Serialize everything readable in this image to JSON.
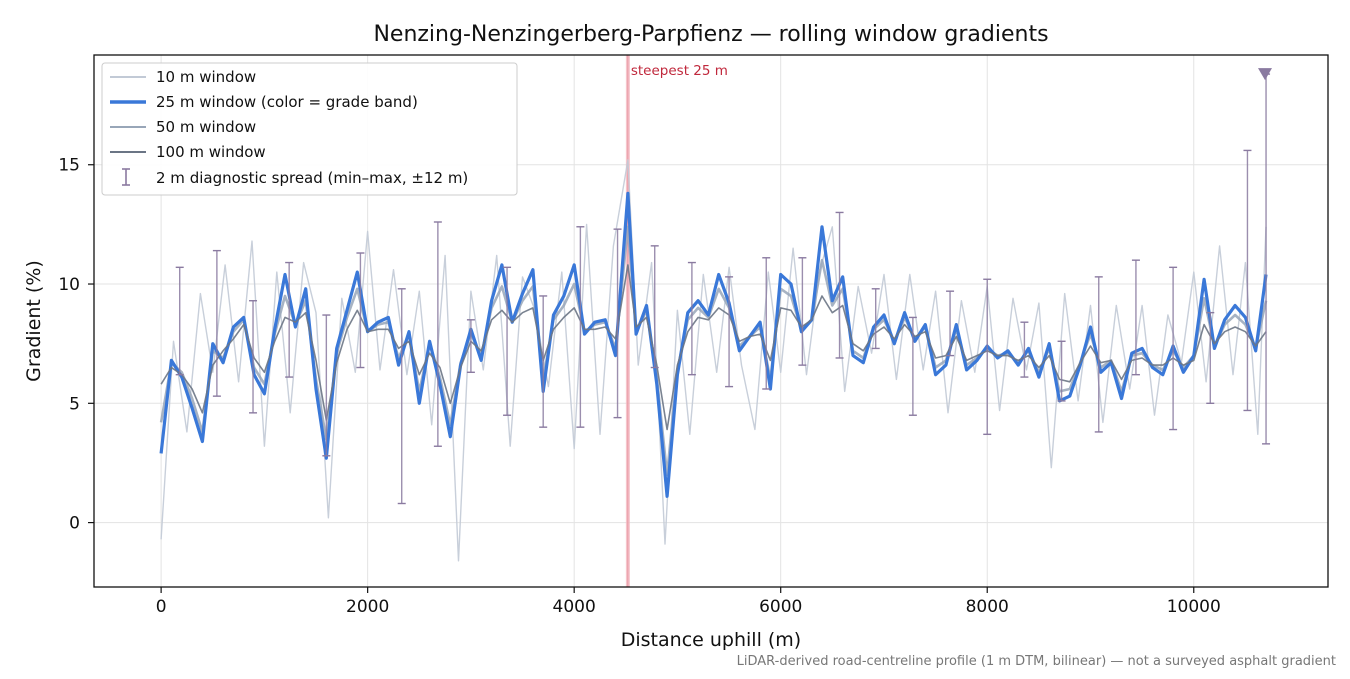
{
  "chart_data": {
    "type": "line",
    "title": "Nenzing-Nenzingerberg-Parpfienz — rolling window gradients",
    "xlabel": "Distance uphill (m)",
    "ylabel": "Gradient (%)",
    "xlim": [
      -650,
      11300
    ],
    "ylim": [
      -2.7,
      19.6
    ],
    "x_ticks": [
      0,
      2000,
      4000,
      6000,
      8000,
      10000
    ],
    "y_ticks": [
      0,
      5,
      10,
      15
    ],
    "grid": true,
    "legend_position": "upper-left",
    "footnote": "LiDAR-derived road-centreline profile (1 m DTM, bilinear) — not a surveyed asphalt gradient",
    "annotation": {
      "text": "steepest 25 m",
      "x": 4520,
      "color": "#c0283c"
    },
    "max_marker": {
      "x": 10690,
      "y": 18.8,
      "color": "#8a7aa0"
    },
    "series": [
      {
        "name": "10 m window",
        "color": "#c2cad6",
        "style": "thin line",
        "x": [
          0,
          120,
          250,
          380,
          500,
          620,
          750,
          880,
          1000,
          1120,
          1250,
          1380,
          1500,
          1620,
          1750,
          1880,
          2000,
          2120,
          2250,
          2380,
          2500,
          2620,
          2750,
          2880,
          3000,
          3120,
          3250,
          3380,
          3500,
          3620,
          3750,
          3880,
          4000,
          4120,
          4250,
          4380,
          4520,
          4620,
          4750,
          4880,
          5000,
          5120,
          5250,
          5380,
          5500,
          5620,
          5750,
          5880,
          6000,
          6120,
          6250,
          6380,
          6500,
          6620,
          6750,
          6880,
          7000,
          7120,
          7250,
          7380,
          7500,
          7620,
          7750,
          7880,
          8000,
          8120,
          8250,
          8380,
          8500,
          8620,
          8750,
          8880,
          9000,
          9120,
          9250,
          9380,
          9500,
          9620,
          9750,
          9880,
          10000,
          10120,
          10250,
          10380,
          10500,
          10620,
          10700
        ],
        "y": [
          -0.7,
          7.6,
          3.8,
          9.6,
          6.3,
          10.8,
          5.9,
          11.8,
          3.2,
          10.5,
          4.6,
          10.9,
          8.8,
          0.2,
          9.4,
          6.3,
          12.2,
          6.4,
          10.6,
          6.2,
          9.7,
          4.1,
          11.2,
          -1.6,
          9.7,
          6.4,
          11.2,
          3.2,
          10.3,
          8.9,
          5.7,
          10.5,
          3.1,
          12.5,
          3.7,
          11.6,
          15.2,
          6.6,
          10.9,
          -0.9,
          8.9,
          3.7,
          10.4,
          6.3,
          10.7,
          6.6,
          3.9,
          10.5,
          6.3,
          11.5,
          6.2,
          10.6,
          12.4,
          5.5,
          9.9,
          7.1,
          10.4,
          6.0,
          10.4,
          6.4,
          9.7,
          4.6,
          9.3,
          6.3,
          9.9,
          4.7,
          9.4,
          6.4,
          9.2,
          2.3,
          9.6,
          5.1,
          9.1,
          4.2,
          9.1,
          5.6,
          9.1,
          4.5,
          8.7,
          6.7,
          10.5,
          5.9,
          11.6,
          6.2,
          10.9,
          3.7,
          12.4
        ]
      },
      {
        "name": "25 m window (color = grade band)",
        "color": "#3a78d8",
        "style": "thick line",
        "x": [
          0,
          100,
          200,
          300,
          400,
          500,
          600,
          700,
          800,
          900,
          1000,
          1100,
          1200,
          1300,
          1400,
          1500,
          1600,
          1700,
          1800,
          1900,
          2000,
          2100,
          2200,
          2300,
          2400,
          2500,
          2600,
          2700,
          2800,
          2900,
          3000,
          3100,
          3200,
          3300,
          3400,
          3500,
          3600,
          3700,
          3800,
          3900,
          4000,
          4100,
          4200,
          4300,
          4400,
          4520,
          4600,
          4700,
          4800,
          4900,
          5000,
          5100,
          5200,
          5300,
          5400,
          5500,
          5600,
          5700,
          5800,
          5900,
          6000,
          6100,
          6200,
          6300,
          6400,
          6500,
          6600,
          6700,
          6800,
          6900,
          7000,
          7100,
          7200,
          7300,
          7400,
          7500,
          7600,
          7700,
          7800,
          7900,
          8000,
          8100,
          8200,
          8300,
          8400,
          8500,
          8600,
          8700,
          8800,
          8900,
          9000,
          9100,
          9200,
          9300,
          9400,
          9500,
          9600,
          9700,
          9800,
          9900,
          10000,
          10100,
          10200,
          10300,
          10400,
          10500,
          10600,
          10700
        ],
        "y": [
          2.9,
          6.8,
          6.1,
          4.8,
          3.4,
          7.5,
          6.7,
          8.2,
          8.6,
          6.2,
          5.4,
          8.1,
          10.4,
          8.2,
          9.8,
          5.6,
          2.7,
          7.3,
          8.9,
          10.5,
          8.0,
          8.4,
          8.6,
          6.6,
          8.0,
          5.0,
          7.6,
          5.8,
          3.6,
          6.6,
          8.1,
          6.8,
          9.3,
          10.8,
          8.4,
          9.6,
          10.6,
          5.5,
          8.7,
          9.5,
          10.8,
          7.9,
          8.4,
          8.5,
          7.0,
          13.8,
          7.9,
          9.1,
          5.8,
          1.1,
          6.2,
          8.8,
          9.3,
          8.7,
          10.4,
          9.2,
          7.2,
          7.8,
          8.4,
          5.6,
          10.4,
          10.0,
          8.0,
          8.5,
          12.4,
          9.3,
          10.3,
          7.0,
          6.7,
          8.2,
          8.7,
          7.5,
          8.8,
          7.6,
          8.3,
          6.2,
          6.6,
          8.3,
          6.4,
          6.8,
          7.4,
          6.9,
          7.2,
          6.6,
          7.3,
          6.1,
          7.5,
          5.1,
          5.3,
          6.6,
          8.2,
          6.3,
          6.7,
          5.2,
          7.1,
          7.3,
          6.5,
          6.2,
          7.4,
          6.3,
          7.0,
          10.2,
          7.3,
          8.5,
          9.1,
          8.6,
          7.2,
          10.4
        ]
      },
      {
        "name": "50 m window",
        "color": "#98a6b8",
        "style": "medium line",
        "x": [
          0,
          100,
          200,
          300,
          400,
          500,
          600,
          700,
          800,
          900,
          1000,
          1100,
          1200,
          1300,
          1400,
          1500,
          1600,
          1700,
          1800,
          1900,
          2000,
          2100,
          2200,
          2300,
          2400,
          2500,
          2600,
          2700,
          2800,
          2900,
          3000,
          3100,
          3200,
          3300,
          3400,
          3500,
          3600,
          3700,
          3800,
          3900,
          4000,
          4100,
          4200,
          4300,
          4400,
          4520,
          4600,
          4700,
          4800,
          4900,
          5000,
          5100,
          5200,
          5300,
          5400,
          5500,
          5600,
          5700,
          5800,
          5900,
          6000,
          6100,
          6200,
          6300,
          6400,
          6500,
          6600,
          6700,
          6800,
          6900,
          7000,
          7100,
          7200,
          7300,
          7400,
          7500,
          7600,
          7700,
          7800,
          7900,
          8000,
          8100,
          8200,
          8300,
          8400,
          8500,
          8600,
          8700,
          8800,
          8900,
          9000,
          9100,
          9200,
          9300,
          9400,
          9500,
          9600,
          9700,
          9800,
          9900,
          10000,
          10100,
          10200,
          10300,
          10400,
          10500,
          10600,
          10700
        ],
        "y": [
          4.2,
          6.7,
          6.3,
          5.2,
          3.8,
          7.2,
          6.9,
          8.0,
          8.5,
          6.5,
          5.8,
          7.9,
          9.5,
          8.3,
          9.3,
          6.0,
          3.5,
          7.1,
          8.6,
          9.8,
          8.0,
          8.3,
          8.4,
          6.9,
          7.9,
          5.5,
          7.5,
          6.1,
          4.1,
          6.7,
          7.9,
          7.0,
          9.0,
          9.9,
          8.4,
          9.3,
          9.9,
          6.0,
          8.5,
          9.1,
          10.0,
          8.0,
          8.3,
          8.4,
          7.3,
          12.4,
          8.0,
          8.9,
          6.1,
          2.0,
          6.4,
          8.5,
          9.0,
          8.6,
          9.8,
          9.0,
          7.4,
          7.8,
          8.2,
          6.0,
          9.8,
          9.5,
          8.1,
          8.5,
          11.0,
          9.1,
          9.8,
          7.2,
          6.9,
          8.1,
          8.5,
          7.6,
          8.6,
          7.7,
          8.2,
          6.5,
          6.8,
          8.1,
          6.6,
          6.9,
          7.3,
          7.0,
          7.1,
          6.7,
          7.2,
          6.3,
          7.3,
          5.5,
          5.6,
          6.7,
          7.9,
          6.5,
          6.8,
          5.5,
          7.0,
          7.1,
          6.6,
          6.4,
          7.2,
          6.5,
          7.0,
          9.4,
          7.4,
          8.3,
          8.7,
          8.3,
          7.3,
          9.3
        ]
      },
      {
        "name": "100 m window",
        "color": "#6b7585",
        "style": "medium line",
        "x": [
          0,
          100,
          200,
          300,
          400,
          500,
          600,
          700,
          800,
          900,
          1000,
          1100,
          1200,
          1300,
          1400,
          1500,
          1600,
          1700,
          1800,
          1900,
          2000,
          2100,
          2200,
          2300,
          2400,
          2500,
          2600,
          2700,
          2800,
          2900,
          3000,
          3100,
          3200,
          3300,
          3400,
          3500,
          3600,
          3700,
          3800,
          3900,
          4000,
          4100,
          4200,
          4300,
          4400,
          4520,
          4600,
          4700,
          4800,
          4900,
          5000,
          5100,
          5200,
          5300,
          5400,
          5500,
          5600,
          5700,
          5800,
          5900,
          6000,
          6100,
          6200,
          6300,
          6400,
          6500,
          6600,
          6700,
          6800,
          6900,
          7000,
          7100,
          7200,
          7300,
          7400,
          7500,
          7600,
          7700,
          7800,
          7900,
          8000,
          8100,
          8200,
          8300,
          8400,
          8500,
          8600,
          8700,
          8800,
          8900,
          9000,
          9100,
          9200,
          9300,
          9400,
          9500,
          9600,
          9700,
          9800,
          9900,
          10000,
          10100,
          10200,
          10300,
          10400,
          10500,
          10600,
          10700
        ],
        "y": [
          5.8,
          6.5,
          6.2,
          5.6,
          4.6,
          6.6,
          7.2,
          7.7,
          8.3,
          6.9,
          6.3,
          7.6,
          8.6,
          8.4,
          8.8,
          6.8,
          4.3,
          6.7,
          8.1,
          8.9,
          8.0,
          8.1,
          8.1,
          7.3,
          7.6,
          6.2,
          7.1,
          6.5,
          5.0,
          6.5,
          7.6,
          7.2,
          8.5,
          8.9,
          8.4,
          8.8,
          9.0,
          6.8,
          8.1,
          8.6,
          9.0,
          8.1,
          8.1,
          8.2,
          7.7,
          10.8,
          8.2,
          8.6,
          6.6,
          3.9,
          6.6,
          8.0,
          8.6,
          8.5,
          9.0,
          8.7,
          7.6,
          7.8,
          7.9,
          6.8,
          9.0,
          8.9,
          8.2,
          8.5,
          9.5,
          8.8,
          9.1,
          7.5,
          7.2,
          7.9,
          8.2,
          7.7,
          8.3,
          7.8,
          8.0,
          6.9,
          7.0,
          7.8,
          6.8,
          7.0,
          7.2,
          7.0,
          7.0,
          6.8,
          7.0,
          6.5,
          7.0,
          6.0,
          5.9,
          6.7,
          7.4,
          6.7,
          6.8,
          6.0,
          6.8,
          6.9,
          6.6,
          6.6,
          6.9,
          6.6,
          6.8,
          8.3,
          7.5,
          8.0,
          8.2,
          8.0,
          7.4,
          8.0
        ]
      },
      {
        "name": "2 m diagnostic spread (min–max, ±12 m)",
        "color": "#8a7aa0",
        "style": "error bars",
        "x": [
          180,
          540,
          890,
          1240,
          1600,
          1930,
          2330,
          2680,
          3000,
          3350,
          3700,
          4060,
          4420,
          4780,
          5140,
          5500,
          5860,
          6210,
          6570,
          6920,
          7280,
          7640,
          8000,
          8360,
          8720,
          9080,
          9440,
          9800,
          10160,
          10520,
          10700
        ],
        "lo": [
          6.2,
          5.3,
          4.6,
          6.1,
          2.8,
          6.5,
          0.8,
          3.2,
          6.3,
          4.5,
          4.0,
          4.0,
          4.4,
          6.5,
          6.2,
          5.7,
          5.6,
          6.6,
          6.9,
          7.3,
          4.5,
          7.0,
          3.7,
          6.1,
          5.1,
          3.8,
          6.2,
          3.9,
          5.0,
          4.7,
          3.3
        ],
        "hi": [
          10.7,
          11.4,
          9.3,
          10.9,
          8.7,
          11.3,
          9.8,
          12.6,
          8.5,
          10.7,
          9.5,
          12.4,
          12.3,
          11.6,
          10.9,
          10.3,
          11.1,
          11.1,
          13.0,
          9.8,
          8.6,
          9.7,
          10.2,
          8.4,
          7.6,
          10.3,
          11.0,
          10.7,
          8.8,
          15.6,
          18.8
        ]
      }
    ]
  }
}
